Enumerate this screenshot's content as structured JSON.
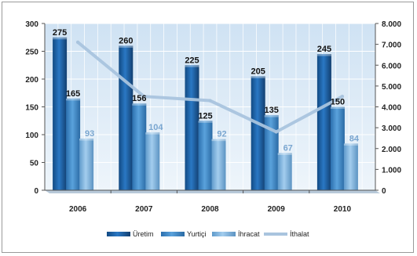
{
  "chart_data": {
    "type": "bar",
    "categories": [
      "2006",
      "2007",
      "2008",
      "2009",
      "2010"
    ],
    "series": [
      {
        "name": "Üretim",
        "type": "bar",
        "axis": "left",
        "values": [
          275,
          260,
          225,
          205,
          245
        ],
        "color": "#1d64a8"
      },
      {
        "name": "Yurtiçi",
        "type": "bar",
        "axis": "left",
        "values": [
          165,
          156,
          125,
          135,
          150
        ],
        "color": "#3f8ccc"
      },
      {
        "name": "İhracat",
        "type": "bar",
        "axis": "left",
        "values": [
          93,
          104,
          92,
          67,
          84
        ],
        "color": "#7fb6e2"
      },
      {
        "name": "İthalat",
        "type": "line",
        "axis": "right",
        "values": [
          7100,
          4500,
          4300,
          2800,
          4500
        ],
        "color": "#a9c4de"
      }
    ],
    "yaxis_left": {
      "range": [
        0,
        300
      ],
      "ticks": [
        "0",
        "50",
        "100",
        "150",
        "200",
        "250",
        "300"
      ]
    },
    "yaxis_right": {
      "range": [
        0,
        8000
      ],
      "ticks": [
        "0",
        "1.000",
        "2.000",
        "3.000",
        "4.000",
        "5.000",
        "6.000",
        "7.000",
        "8.000"
      ]
    },
    "data_labels": {
      "Üretim": [
        "275",
        "260",
        "225",
        "205",
        "245"
      ],
      "Yurtiçi": [
        "165",
        "156",
        "125",
        "135",
        "150"
      ],
      "İhracat": [
        "93",
        "104",
        "92",
        "67",
        "84"
      ]
    },
    "grid": true,
    "legend": "bottom",
    "title": "",
    "xlabel": "",
    "ylabel": ""
  }
}
